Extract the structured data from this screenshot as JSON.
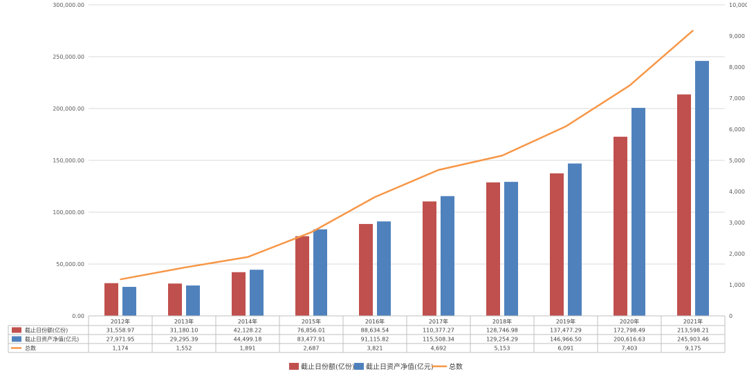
{
  "chart_data": {
    "type": "bar",
    "categories": [
      "2012年",
      "2013年",
      "2014年",
      "2015年",
      "2016年",
      "2017年",
      "2018年",
      "2019年",
      "2020年",
      "2021年"
    ],
    "series": [
      {
        "name": "截止日份额(亿份)",
        "type": "bar",
        "axis": "left",
        "values": [
          31558.97,
          31180.1,
          42128.22,
          76856.01,
          88634.54,
          110377.27,
          128746.98,
          137477.29,
          172798.49,
          213598.21
        ],
        "labels": [
          "31,558.97",
          "31,180.10",
          "42,128.22",
          "76,856.01",
          "88,634.54",
          "110,377.27",
          "128,746.98",
          "137,477.29",
          "172,798.49",
          "213,598.21"
        ]
      },
      {
        "name": "截止日资产净值(亿元)",
        "type": "bar",
        "axis": "left",
        "values": [
          27971.95,
          29295.39,
          44499.18,
          83477.91,
          91115.82,
          115508.34,
          129254.29,
          146966.5,
          200616.63,
          245903.46
        ],
        "labels": [
          "27,971.95",
          "29,295.39",
          "44,499.18",
          "83,477.91",
          "91,115.82",
          "115,508.34",
          "129,254.29",
          "146,966.50",
          "200,616.63",
          "245,903.46"
        ]
      },
      {
        "name": "总数",
        "type": "line",
        "axis": "right",
        "values": [
          1174,
          1552,
          1891,
          2687,
          3821,
          4692,
          5153,
          6091,
          7403,
          9175
        ],
        "labels": [
          "1,174",
          "1,552",
          "1,891",
          "2,687",
          "3,821",
          "4,692",
          "5,153",
          "6,091",
          "7,403",
          "9,175"
        ]
      }
    ],
    "left_axis": {
      "min": 0,
      "max": 300000,
      "ticks": [
        "0.00",
        "50,000.00",
        "100,000.00",
        "150,000.00",
        "200,000.00",
        "250,000.00",
        "300,000.00"
      ]
    },
    "right_axis": {
      "min": 0,
      "max": 10000,
      "ticks": [
        "0",
        "1,000",
        "2,000",
        "3,000",
        "4,000",
        "5,000",
        "6,000",
        "7,000",
        "8,000",
        "9,000",
        "10,000"
      ]
    },
    "grid": true,
    "data_table": true,
    "legend_position": "bottom"
  },
  "colors": {
    "bar1": "#c0504d",
    "bar2": "#4f81bd",
    "line": "#f79646",
    "grid": "#d9d9d9",
    "axis": "#bfbfbf"
  }
}
